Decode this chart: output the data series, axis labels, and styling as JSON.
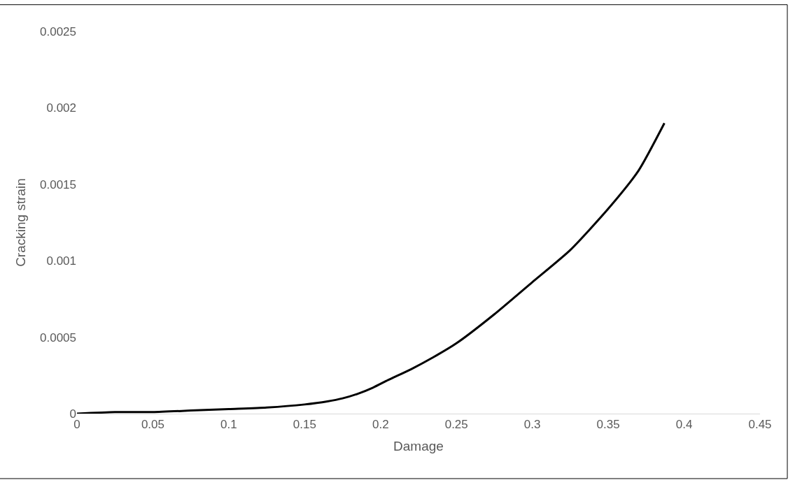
{
  "chart_data": {
    "type": "line",
    "xlabel": "Damage",
    "ylabel": "Cracking strain",
    "x": [
      0,
      0.025,
      0.05,
      0.075,
      0.1,
      0.125,
      0.15,
      0.165,
      0.175,
      0.185,
      0.195,
      0.205,
      0.22,
      0.235,
      0.25,
      0.275,
      0.3,
      0.325,
      0.35,
      0.37,
      0.387
    ],
    "series": [
      {
        "color": "#000000",
        "values": [
          0,
          1e-05,
          1e-05,
          2e-05,
          3e-05,
          4e-05,
          6e-05,
          8e-05,
          0.0001,
          0.00013,
          0.00017,
          0.00022,
          0.00029,
          0.00037,
          0.00046,
          0.00065,
          0.00086,
          0.00107,
          0.00134,
          0.00159,
          0.0019
        ]
      }
    ],
    "xlim": [
      0,
      0.45
    ],
    "xticks": [
      0,
      0.05,
      0.1,
      0.15,
      0.2,
      0.25,
      0.3,
      0.35,
      0.4,
      0.45
    ],
    "ylim": [
      0,
      0.0025
    ],
    "yticks": [
      0,
      0.0005,
      0.001,
      0.0015,
      0.002,
      0.0025
    ],
    "grid": false,
    "legend": false,
    "marker": "none",
    "line_style": "solid"
  }
}
